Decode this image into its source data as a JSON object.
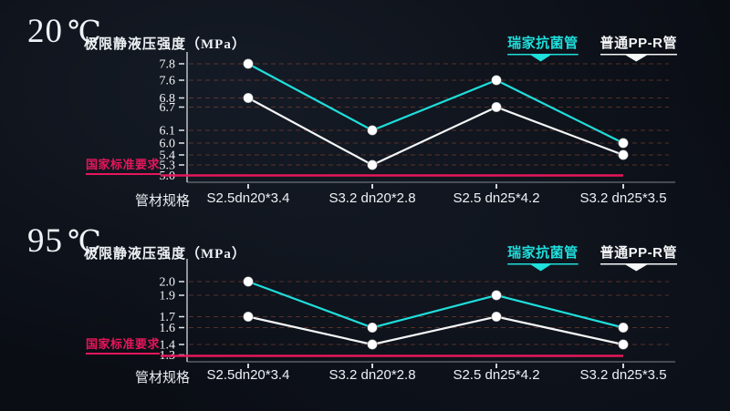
{
  "chart_data": [
    {
      "type": "line",
      "temp_value": "20",
      "temp_unit": "℃",
      "title": "极限静液压强度（MPa）",
      "ylabel": "MPa",
      "x_axis_caption": "管材规格",
      "categories": [
        "S2.5dn20*3.4",
        "S3.2 dn20*2.8",
        "S2.5 dn25*4.2",
        "S3.2 dn25*3.5"
      ],
      "yticks": [
        "7.8",
        "7.6",
        "6.8",
        "6.7",
        "6.1",
        "6.0",
        "5.4",
        "5.3",
        "5.0"
      ],
      "series": [
        {
          "name": "瑞家抗菌管",
          "color": "#1fdedb",
          "values": [
            7.8,
            6.1,
            7.6,
            6.0
          ]
        },
        {
          "name": "普通PP-R管",
          "color": "#f4f6f7",
          "values": [
            6.8,
            5.3,
            6.7,
            5.4
          ]
        }
      ],
      "standard": {
        "label": "国家标准要求",
        "value": 5.0,
        "color": "#e5175b"
      },
      "legend_position": "top-right",
      "grid": "dashed horizontal"
    },
    {
      "type": "line",
      "temp_value": "95",
      "temp_unit": "℃",
      "title": "极限静液压强度（MPa）",
      "ylabel": "MPa",
      "x_axis_caption": "管材规格",
      "categories": [
        "S2.5dn20*3.4",
        "S3.2 dn20*2.8",
        "S2.5 dn25*4.2",
        "S3.2 dn25*3.5"
      ],
      "yticks": [
        "2.0",
        "1.9",
        "1.7",
        "1.6",
        "1.4",
        "1.3"
      ],
      "series": [
        {
          "name": "瑞家抗菌管",
          "color": "#1fdedb",
          "values": [
            2.0,
            1.6,
            1.9,
            1.6
          ]
        },
        {
          "name": "普通PP-R管",
          "color": "#f4f6f7",
          "values": [
            1.7,
            1.4,
            1.7,
            1.4
          ]
        }
      ],
      "standard": {
        "label": "国家标准要求",
        "value": 1.3,
        "color": "#e5175b"
      },
      "legend_position": "top-right",
      "grid": "dashed horizontal"
    }
  ],
  "colors": {
    "background": "#0a0d14",
    "accent_cyan": "#1fdedb",
    "line_white": "#f4f6f7",
    "standard_red": "#e5175b"
  }
}
